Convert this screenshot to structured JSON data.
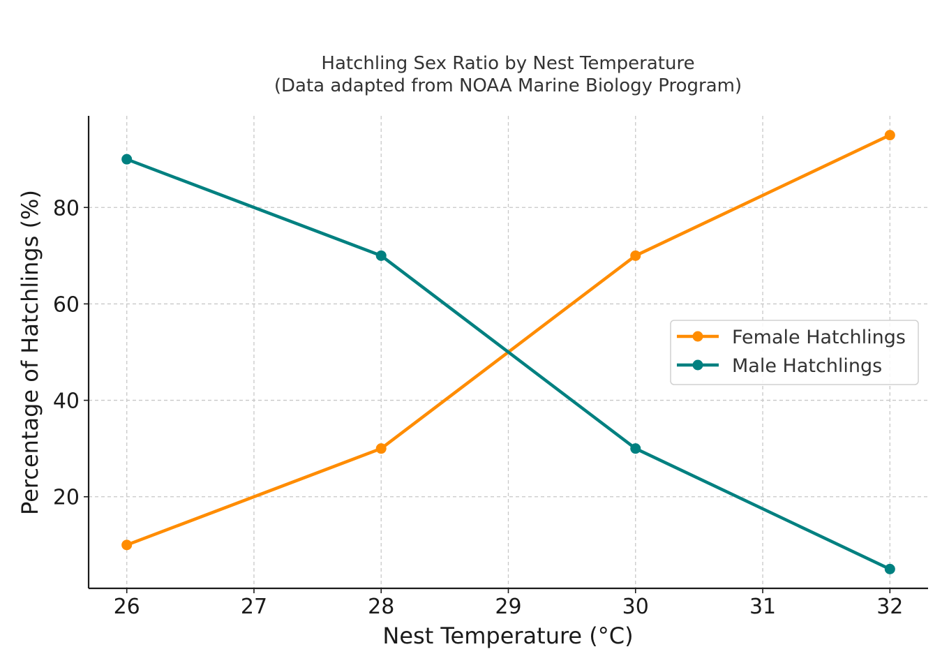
{
  "chart_data": {
    "type": "line",
    "title": "Hatchling Sex Ratio by Nest Temperature",
    "subtitle": "(Data adapted from NOAA Marine Biology Program)",
    "xlabel": "Nest Temperature (°C)",
    "ylabel": "Percentage of Hatchlings (%)",
    "x": [
      26,
      28,
      30,
      32
    ],
    "xlim": [
      25.7,
      32.3
    ],
    "ylim": [
      1.0,
      99.0
    ],
    "x_ticks": [
      26,
      27,
      28,
      29,
      30,
      31,
      32
    ],
    "y_ticks": [
      20,
      40,
      60,
      80
    ],
    "grid": true,
    "legend_position": "center-right",
    "series": [
      {
        "name": "Female Hatchlings",
        "values": [
          10,
          30,
          70,
          95
        ],
        "color": "#ff8c00",
        "marker": "circle"
      },
      {
        "name": "Male Hatchlings",
        "values": [
          90,
          70,
          30,
          5
        ],
        "color": "#008080",
        "marker": "circle"
      }
    ]
  }
}
